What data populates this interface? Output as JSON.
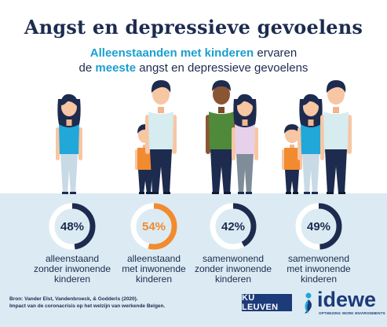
{
  "title": "Angst en depressieve gevoelens",
  "subtitle": {
    "line1_highlight": "Alleenstaanden met kinderen",
    "line1_rest": " ervaren",
    "line2_start": "de ",
    "line2_highlight": "meeste",
    "line2_rest": " angst en depressieve gevoelens"
  },
  "groups": [
    {
      "percent_label": "48%",
      "value": 48,
      "caption_line1": "alleenstaand",
      "caption_line2": "zonder inwonende",
      "caption_line3": "kinderen",
      "color": "#1d2b4f"
    },
    {
      "percent_label": "54%",
      "value": 54,
      "caption_line1": "alleenstaand",
      "caption_line2": "met inwonende",
      "caption_line3": "kinderen",
      "color": "#f28a30"
    },
    {
      "percent_label": "42%",
      "value": 42,
      "caption_line1": "samenwonend",
      "caption_line2": "zonder inwonende",
      "caption_line3": "kinderen",
      "color": "#1d2b4f"
    },
    {
      "percent_label": "49%",
      "value": 49,
      "caption_line1": "samenwonend",
      "caption_line2": "met inwonende",
      "caption_line3": "kinderen",
      "color": "#1d2b4f"
    }
  ],
  "source": {
    "line1": "Bron: Vander Elst, Vandenbroeck, & Godderis (2020).",
    "line2": "Impact van de coronacrisis op het welzijn van werkende Belgen."
  },
  "logos": {
    "ku_leuven": "KU LEUVEN",
    "idewe_name": "idewe",
    "idewe_tagline": "OPTIMIZING WORK ENVIRONMENTS"
  },
  "colors": {
    "navy": "#1d2b4f",
    "accent_blue": "#1a9fd0",
    "orange": "#f28a30",
    "band": "#dcebf3",
    "ring_track": "#ffffff"
  },
  "icons": [
    "woman-figure",
    "man-figure",
    "child-figure",
    "donut-ring",
    "idewe-logo-mark"
  ]
}
